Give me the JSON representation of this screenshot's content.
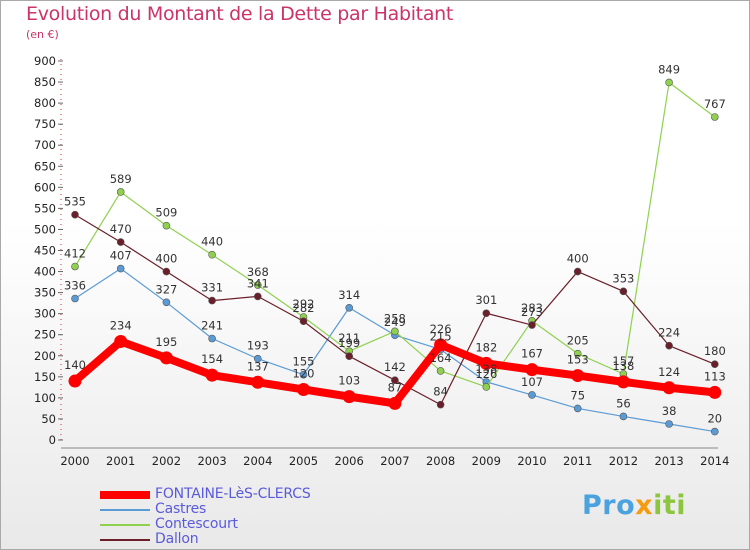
{
  "title": "Evolution du Montant de la Dette par Habitant",
  "unit": "(en €)",
  "logo": {
    "part1": "Pro",
    "part2": "x",
    "part3": "iti"
  },
  "chart_data": {
    "type": "line",
    "title": "Evolution du Montant de la Dette par Habitant",
    "ylabel": "(en €)",
    "x": [
      2000,
      2001,
      2002,
      2003,
      2004,
      2005,
      2006,
      2007,
      2008,
      2009,
      2010,
      2011,
      2012,
      2013,
      2014
    ],
    "ylim": [
      0,
      900
    ],
    "yticks": [
      0,
      50,
      100,
      150,
      200,
      250,
      300,
      350,
      400,
      450,
      500,
      550,
      600,
      650,
      700,
      750,
      800,
      850,
      900
    ],
    "grid": false,
    "legend": "bottom-left",
    "series": [
      {
        "name": "Castres",
        "color": "#5b9bd5",
        "values": [
          336,
          407,
          327,
          241,
          193,
          155,
          314,
          249,
          215,
          138,
          107,
          75,
          56,
          38,
          20
        ]
      },
      {
        "name": "Contescourt",
        "color": "#8fd14f",
        "values": [
          412,
          589,
          509,
          440,
          368,
          292,
          211,
          258,
          164,
          126,
          283,
          205,
          157,
          849,
          767
        ]
      },
      {
        "name": "Dallon",
        "color": "#6b1f2a",
        "values": [
          535,
          470,
          400,
          331,
          341,
          282,
          199,
          142,
          84,
          301,
          273,
          400,
          353,
          224,
          180
        ]
      },
      {
        "name": "FONTAINE-LèS-CLERCS",
        "color": "#ff0000",
        "values": [
          140,
          234,
          195,
          154,
          137,
          120,
          103,
          87,
          226,
          182,
          167,
          153,
          138,
          124,
          113
        ]
      }
    ],
    "legend_order": [
      "FONTAINE-LèS-CLERCS",
      "Castres",
      "Contescourt",
      "Dallon"
    ]
  }
}
